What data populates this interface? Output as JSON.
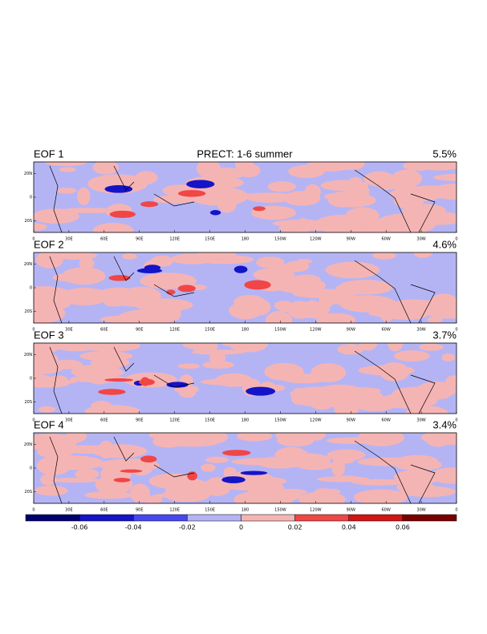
{
  "title": "PRECT: 1-6 summer",
  "panels": [
    {
      "label": "EOF 1",
      "variance": "5.5%"
    },
    {
      "label": "EOF 2",
      "variance": "4.6%"
    },
    {
      "label": "EOF 3",
      "variance": "3.7%"
    },
    {
      "label": "EOF 4",
      "variance": "3.4%"
    }
  ],
  "lonlim": [
    0,
    360
  ],
  "lon_ticks": [
    0,
    {
      "value": 30,
      "label": "30E"
    },
    {
      "value": 60,
      "label": "60E"
    },
    {
      "value": 90,
      "label": "90E"
    },
    {
      "value": 120,
      "label": "120E"
    },
    {
      "value": 150,
      "label": "150E"
    },
    180,
    {
      "value": 210,
      "label": "150W"
    },
    {
      "value": 240,
      "label": "120W"
    },
    {
      "value": 270,
      "label": "90W"
    },
    {
      "value": 300,
      "label": "60W"
    },
    {
      "value": 330,
      "label": "30W"
    },
    {
      "value": 360,
      "label": "0"
    }
  ],
  "latlim": [
    -30,
    30
  ],
  "lat_ticks": [
    {
      "value": 20,
      "label": "20N"
    },
    0,
    {
      "value": -20,
      "label": "20S"
    }
  ],
  "colorbar": {
    "colors": [
      "#00006e",
      "#1414c8",
      "#4646f0",
      "#b4b4f5",
      "#f5b4b4",
      "#f04646",
      "#d21414",
      "#780000"
    ],
    "ticks": [
      -0.06,
      -0.04,
      -0.02,
      0,
      0.02,
      0.04,
      0.06
    ]
  }
}
